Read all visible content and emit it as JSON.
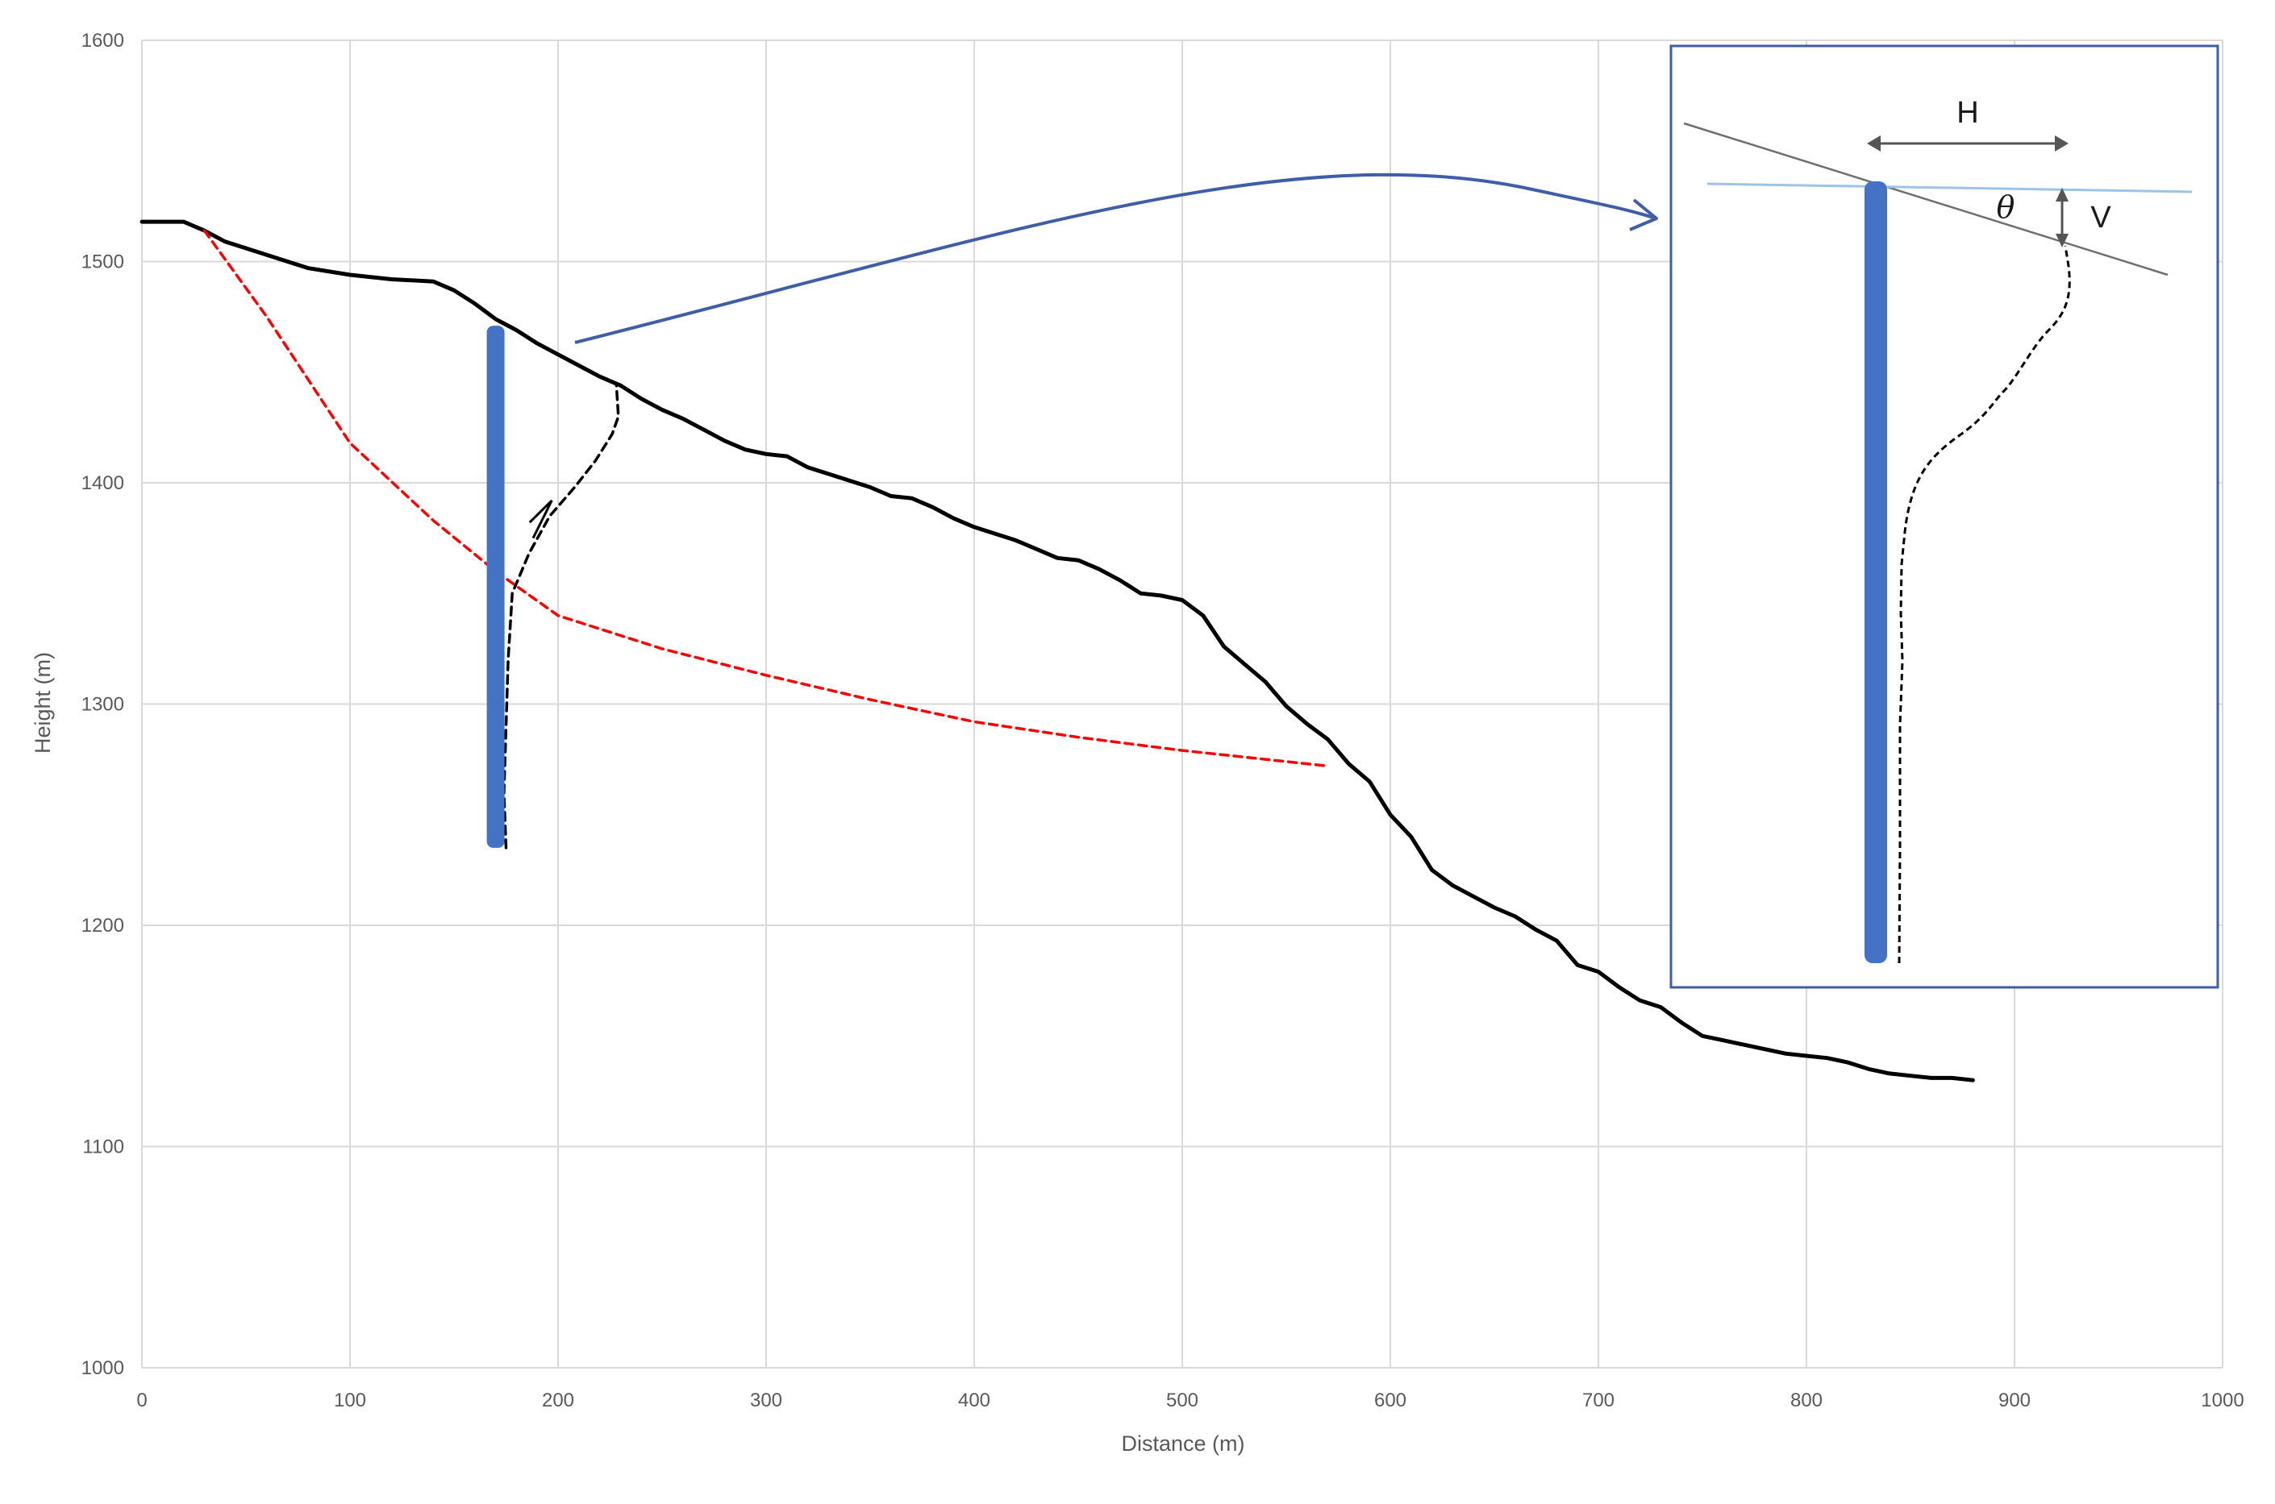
{
  "chart_data": {
    "type": "line",
    "title": "",
    "xlabel": "Distance (m)",
    "ylabel": "Height (m)",
    "xlim": [
      0,
      1000
    ],
    "ylim": [
      1000,
      1600
    ],
    "xticks": [
      0,
      100,
      200,
      300,
      400,
      500,
      600,
      700,
      800,
      900,
      1000
    ],
    "yticks": [
      1000,
      1100,
      1200,
      1300,
      1400,
      1500,
      1600
    ],
    "grid": true,
    "series": [
      {
        "style": "solid",
        "color": "#000000",
        "points": [
          [
            0,
            1518
          ],
          [
            10,
            1518
          ],
          [
            20,
            1518
          ],
          [
            30,
            1514
          ],
          [
            40,
            1509
          ],
          [
            60,
            1503
          ],
          [
            80,
            1497
          ],
          [
            100,
            1494
          ],
          [
            120,
            1492
          ],
          [
            140,
            1491
          ],
          [
            150,
            1487
          ],
          [
            160,
            1481
          ],
          [
            170,
            1474
          ],
          [
            180,
            1469
          ],
          [
            190,
            1463
          ],
          [
            200,
            1458
          ],
          [
            210,
            1453
          ],
          [
            220,
            1448
          ],
          [
            230,
            1444
          ],
          [
            240,
            1438
          ],
          [
            250,
            1433
          ],
          [
            260,
            1429
          ],
          [
            270,
            1424
          ],
          [
            280,
            1419
          ],
          [
            290,
            1415
          ],
          [
            300,
            1413
          ],
          [
            310,
            1412
          ],
          [
            320,
            1407
          ],
          [
            330,
            1404
          ],
          [
            340,
            1401
          ],
          [
            350,
            1398
          ],
          [
            360,
            1394
          ],
          [
            370,
            1393
          ],
          [
            380,
            1389
          ],
          [
            390,
            1384
          ],
          [
            400,
            1380
          ],
          [
            410,
            1377
          ],
          [
            420,
            1374
          ],
          [
            430,
            1370
          ],
          [
            440,
            1366
          ],
          [
            450,
            1365
          ],
          [
            460,
            1361
          ],
          [
            470,
            1356
          ],
          [
            480,
            1350
          ],
          [
            490,
            1349
          ],
          [
            500,
            1347
          ],
          [
            510,
            1340
          ],
          [
            520,
            1326
          ],
          [
            530,
            1318
          ],
          [
            540,
            1310
          ],
          [
            550,
            1299
          ],
          [
            560,
            1291
          ],
          [
            570,
            1284
          ],
          [
            580,
            1273
          ],
          [
            590,
            1265
          ],
          [
            600,
            1250
          ],
          [
            610,
            1240
          ],
          [
            620,
            1225
          ],
          [
            630,
            1218
          ],
          [
            640,
            1213
          ],
          [
            650,
            1208
          ],
          [
            660,
            1204
          ],
          [
            670,
            1198
          ],
          [
            680,
            1193
          ],
          [
            690,
            1182
          ],
          [
            700,
            1179
          ],
          [
            710,
            1172
          ],
          [
            720,
            1166
          ],
          [
            730,
            1163
          ],
          [
            740,
            1156
          ],
          [
            750,
            1150
          ],
          [
            760,
            1148
          ],
          [
            770,
            1146
          ],
          [
            780,
            1144
          ],
          [
            790,
            1142
          ],
          [
            800,
            1141
          ],
          [
            810,
            1140
          ],
          [
            820,
            1138
          ],
          [
            830,
            1135
          ],
          [
            840,
            1133
          ],
          [
            850,
            1132
          ],
          [
            860,
            1131
          ],
          [
            870,
            1131
          ],
          [
            880,
            1130
          ]
        ]
      },
      {
        "style": "dashed",
        "color": "#ff0000",
        "points": [
          [
            30,
            1514
          ],
          [
            60,
            1475
          ],
          [
            100,
            1418
          ],
          [
            140,
            1383
          ],
          [
            170,
            1360
          ],
          [
            200,
            1340
          ],
          [
            250,
            1325
          ],
          [
            300,
            1313
          ],
          [
            350,
            1302
          ],
          [
            400,
            1292
          ],
          [
            450,
            1285
          ],
          [
            500,
            1279
          ],
          [
            540,
            1275
          ],
          [
            570,
            1272
          ]
        ]
      },
      {
        "style": "dashed",
        "color": "#000000",
        "points": [
          [
            175,
            1235
          ],
          [
            174,
            1260
          ],
          [
            175,
            1290
          ],
          [
            176,
            1320
          ],
          [
            178,
            1350
          ],
          [
            186,
            1368
          ],
          [
            196,
            1385
          ],
          [
            208,
            1398
          ],
          [
            218,
            1410
          ],
          [
            226,
            1422
          ],
          [
            229,
            1430
          ],
          [
            228,
            1445
          ]
        ]
      }
    ],
    "markers": [
      {
        "type": "borehole",
        "color": "#4472c4",
        "x": 170,
        "y_top": 1471,
        "y_bottom": 1235
      }
    ],
    "annotations": {
      "arrow_color": "#3f5ea8",
      "inset": {
        "border_color": "#3f5ea8",
        "labels": {
          "H": "H",
          "V": "V",
          "theta": "θ"
        },
        "surface_line_color": "#6f6f6f",
        "horizontal_line_color": "#9dc3e6"
      }
    }
  }
}
